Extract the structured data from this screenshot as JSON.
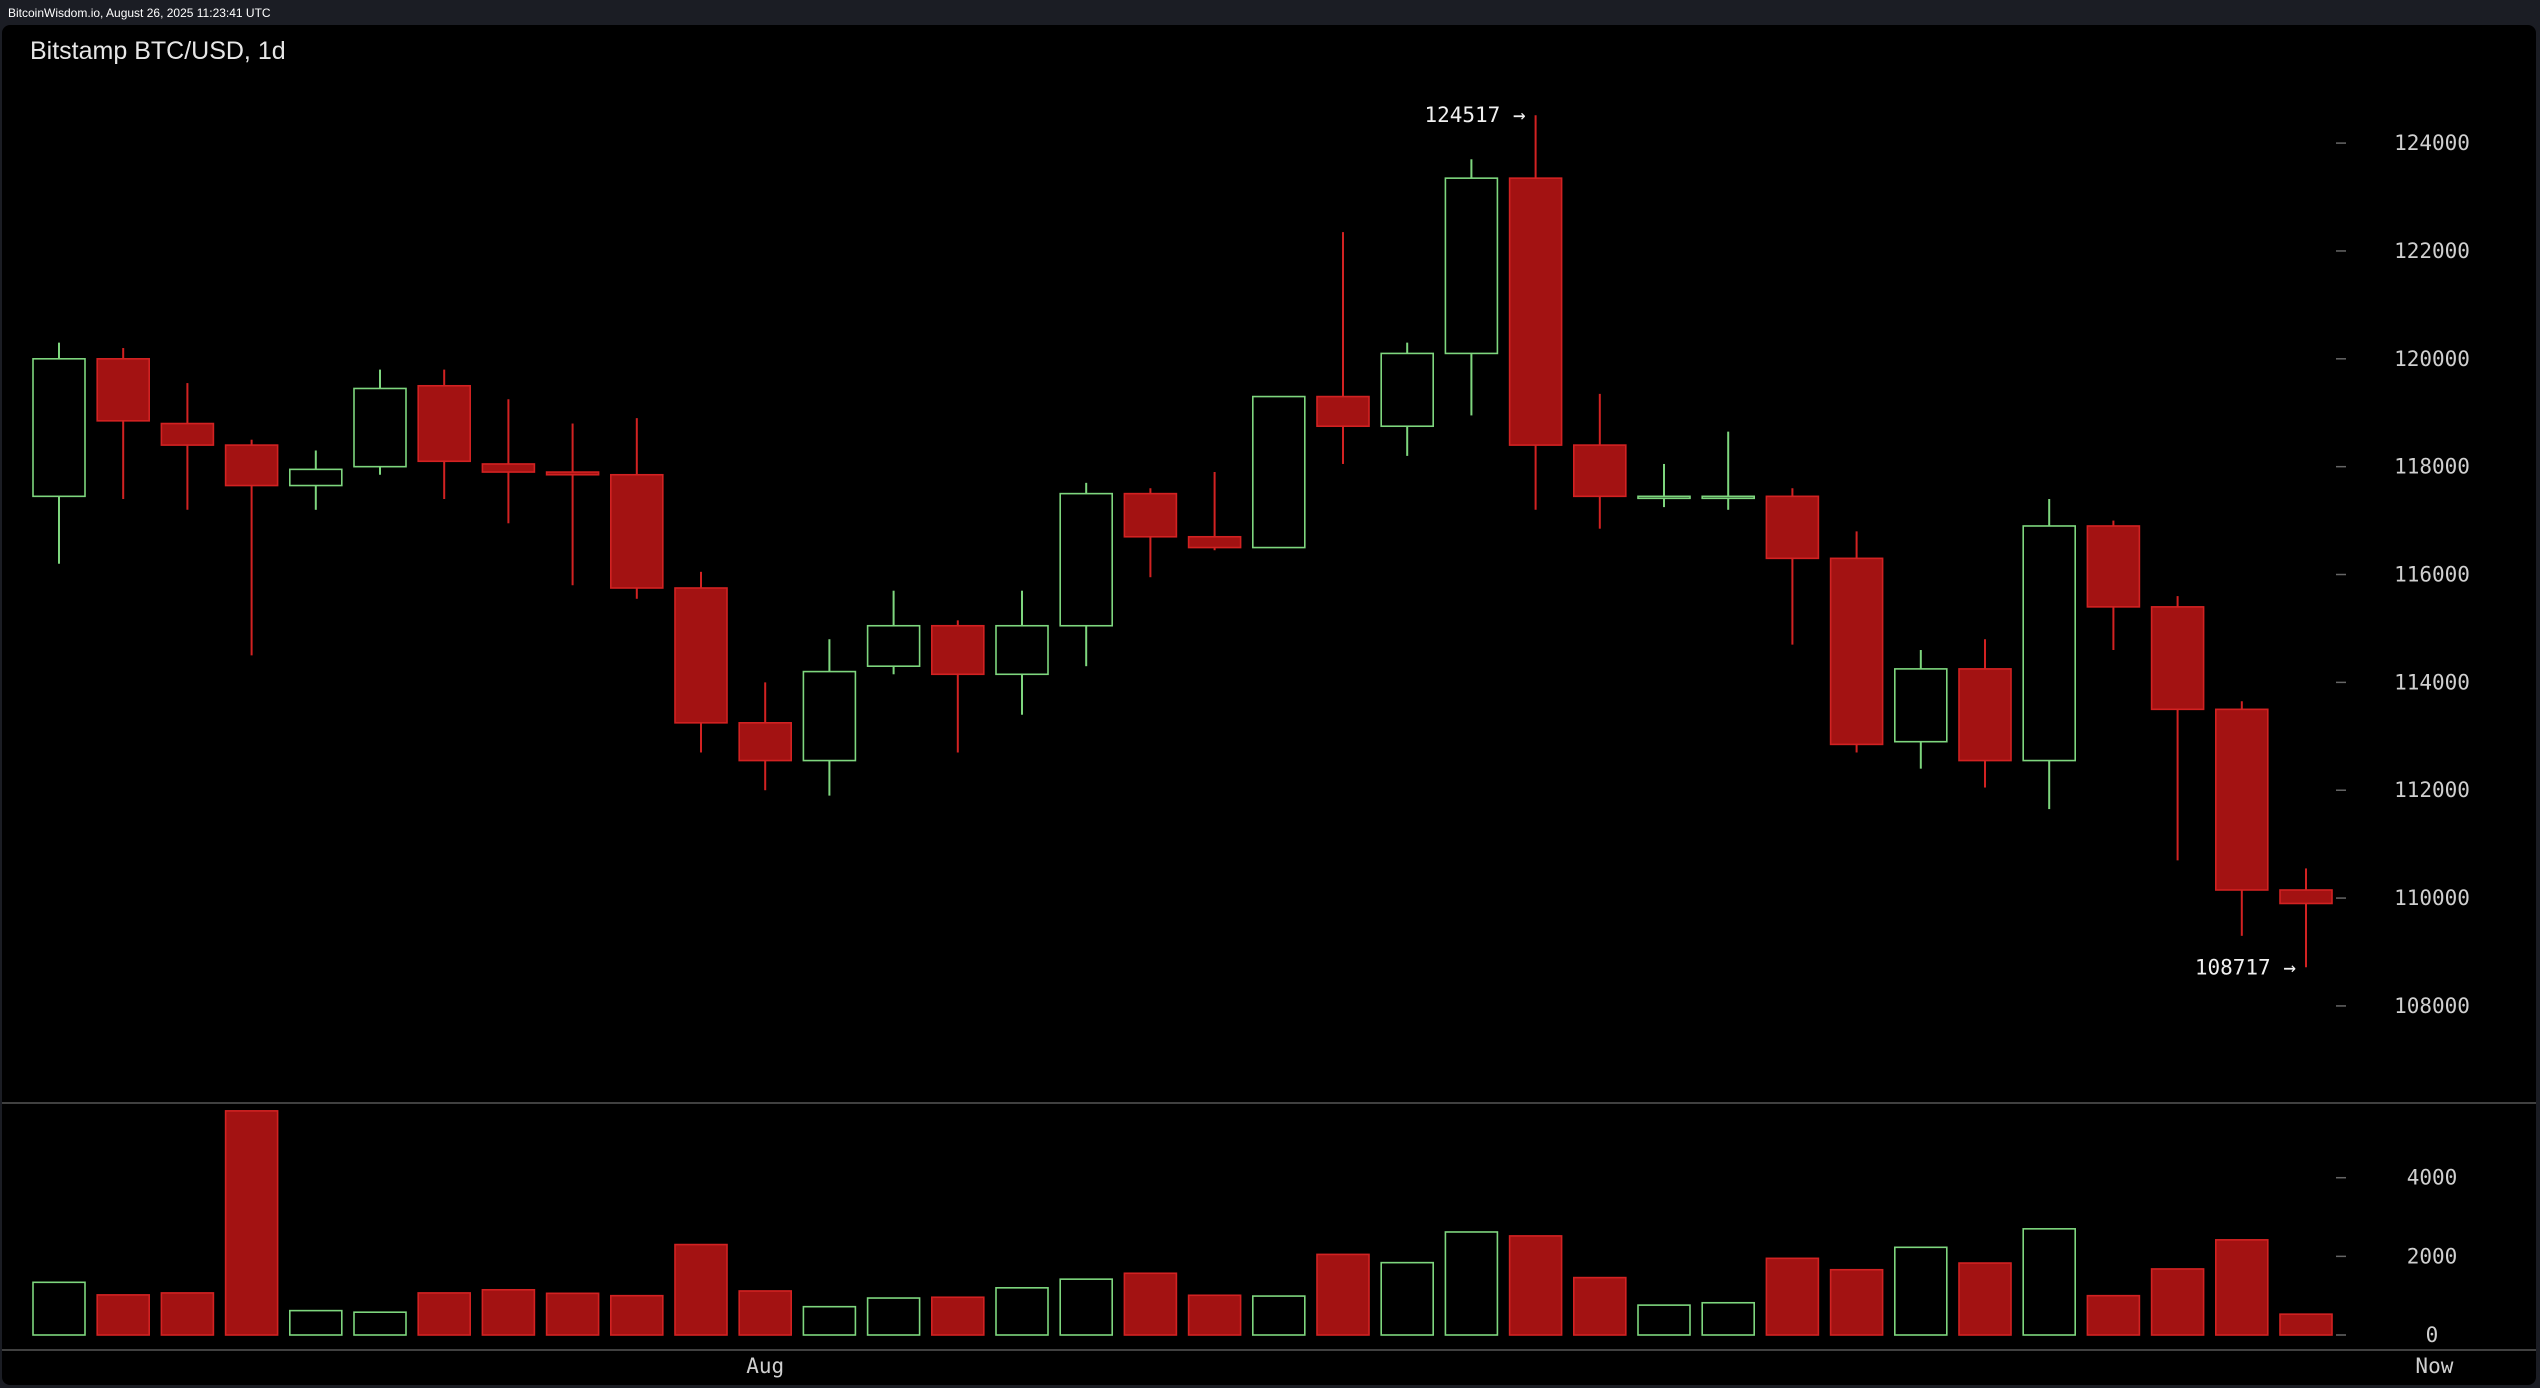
{
  "header": {
    "timestamp": "BitcoinWisdom.io, August 26, 2025 11:23:41 UTC"
  },
  "chart_data": {
    "type": "candlestick",
    "title": "Bitstamp BTC/USD, 1d",
    "price_axis": {
      "ticks": [
        108000,
        110000,
        112000,
        114000,
        116000,
        118000,
        120000,
        122000,
        124000
      ],
      "range": [
        106200,
        125300
      ]
    },
    "volume_axis": {
      "ticks": [
        0,
        2000,
        4000
      ],
      "range": [
        0,
        5900
      ]
    },
    "x_labels": [
      {
        "label": "Aug",
        "index": 11
      },
      {
        "label": "Now",
        "index": 37
      }
    ],
    "annotations": [
      {
        "text": "124517 →",
        "value": 124517,
        "index": 23
      },
      {
        "text": "108717 →",
        "value": 108717,
        "index": 35
      }
    ],
    "candles": [
      {
        "open": 117450,
        "high": 120300,
        "low": 116200,
        "close": 120000,
        "volume": 1340
      },
      {
        "open": 120000,
        "high": 120200,
        "low": 117400,
        "close": 118850,
        "volume": 1020
      },
      {
        "open": 118800,
        "high": 119550,
        "low": 117200,
        "close": 118400,
        "volume": 1070
      },
      {
        "open": 118400,
        "high": 118500,
        "low": 114500,
        "close": 117650,
        "volume": 5700
      },
      {
        "open": 117650,
        "high": 118300,
        "low": 117200,
        "close": 117950,
        "volume": 620
      },
      {
        "open": 118000,
        "high": 119800,
        "low": 117850,
        "close": 119450,
        "volume": 580
      },
      {
        "open": 119500,
        "high": 119800,
        "low": 117400,
        "close": 118100,
        "volume": 1070
      },
      {
        "open": 118050,
        "high": 119250,
        "low": 116950,
        "close": 117900,
        "volume": 1150
      },
      {
        "open": 117900,
        "high": 118800,
        "low": 115800,
        "close": 117850,
        "volume": 1060
      },
      {
        "open": 117850,
        "high": 118900,
        "low": 115550,
        "close": 115750,
        "volume": 1000
      },
      {
        "open": 115750,
        "high": 116050,
        "low": 112700,
        "close": 113250,
        "volume": 2300
      },
      {
        "open": 113250,
        "high": 114000,
        "low": 112000,
        "close": 112550,
        "volume": 1120
      },
      {
        "open": 112550,
        "high": 114800,
        "low": 111900,
        "close": 114200,
        "volume": 720
      },
      {
        "open": 114300,
        "high": 115700,
        "low": 114150,
        "close": 115050,
        "volume": 940
      },
      {
        "open": 115050,
        "high": 115150,
        "low": 112700,
        "close": 114150,
        "volume": 960
      },
      {
        "open": 114150,
        "high": 115700,
        "low": 113400,
        "close": 115050,
        "volume": 1200
      },
      {
        "open": 115050,
        "high": 117700,
        "low": 114300,
        "close": 117500,
        "volume": 1420
      },
      {
        "open": 117500,
        "high": 117600,
        "low": 115950,
        "close": 116700,
        "volume": 1570
      },
      {
        "open": 116700,
        "high": 117900,
        "low": 116450,
        "close": 116500,
        "volume": 1010
      },
      {
        "open": 116500,
        "high": 119300,
        "low": 116500,
        "close": 119300,
        "volume": 990
      },
      {
        "open": 119300,
        "high": 122350,
        "low": 118050,
        "close": 118750,
        "volume": 2050
      },
      {
        "open": 118750,
        "high": 120300,
        "low": 118200,
        "close": 120100,
        "volume": 1840
      },
      {
        "open": 120100,
        "high": 123700,
        "low": 118950,
        "close": 123350,
        "volume": 2620
      },
      {
        "open": 123350,
        "high": 124517,
        "low": 117200,
        "close": 118400,
        "volume": 2520
      },
      {
        "open": 118400,
        "high": 119350,
        "low": 116850,
        "close": 117450,
        "volume": 1460
      },
      {
        "open": 117450,
        "high": 118050,
        "low": 117250,
        "close": 117450,
        "volume": 760
      },
      {
        "open": 117450,
        "high": 118650,
        "low": 117200,
        "close": 117450,
        "volume": 820
      },
      {
        "open": 117450,
        "high": 117600,
        "low": 114700,
        "close": 116300,
        "volume": 1950
      },
      {
        "open": 116300,
        "high": 116800,
        "low": 112700,
        "close": 112850,
        "volume": 1660
      },
      {
        "open": 112900,
        "high": 114600,
        "low": 112400,
        "close": 114250,
        "volume": 2230
      },
      {
        "open": 114250,
        "high": 114800,
        "low": 112050,
        "close": 112550,
        "volume": 1830
      },
      {
        "open": 112550,
        "high": 117400,
        "low": 111650,
        "close": 116900,
        "volume": 2700
      },
      {
        "open": 116900,
        "high": 117000,
        "low": 114600,
        "close": 115400,
        "volume": 1000
      },
      {
        "open": 115400,
        "high": 115600,
        "low": 110700,
        "close": 113500,
        "volume": 1680
      },
      {
        "open": 113500,
        "high": 113650,
        "low": 109300,
        "close": 110150,
        "volume": 2420
      },
      {
        "open": 110150,
        "high": 110550,
        "low": 108717,
        "close": 109900,
        "volume": 530
      }
    ]
  },
  "colors": {
    "up": "#7ed67e",
    "down": "#a31212",
    "down_stroke": "#d22222",
    "axis_text": "#cfcfcf",
    "separator": "#555555"
  }
}
